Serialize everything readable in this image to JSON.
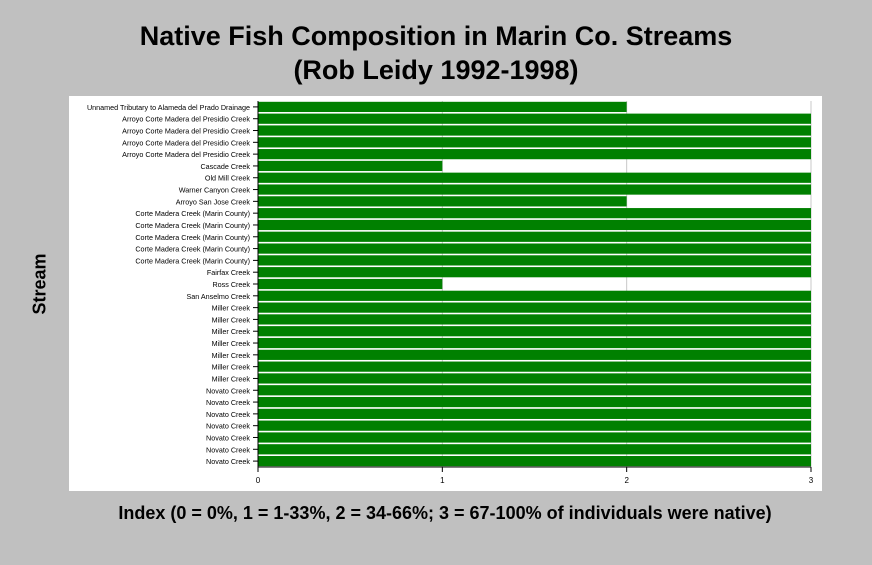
{
  "chart_data": {
    "type": "bar",
    "orientation": "horizontal",
    "title": "Native Fish Composition in Marin Co. Streams",
    "subtitle": "(Rob Leidy 1992-1998)",
    "ylabel": "Stream",
    "xlabel": "Index (0 = 0%, 1 = 1-33%, 2 = 34-66%; 3 = 67-100% of individuals were native)",
    "xlim": [
      0,
      3
    ],
    "xticks": [
      0,
      1,
      2,
      3
    ],
    "grid": true,
    "bar_color": "#008000",
    "categories": [
      "Unnamed Tributary to Alameda del Prado Drainage",
      "Arroyo Corte Madera del Presidio Creek",
      "Arroyo Corte Madera del Presidio Creek",
      "Arroyo Corte Madera del Presidio Creek",
      "Arroyo Corte Madera del Presidio Creek",
      "Cascade Creek",
      "Old Mill Creek",
      "Warner Canyon Creek",
      "Arroyo San Jose Creek",
      "Corte Madera Creek (Marin County)",
      "Corte Madera Creek (Marin County)",
      "Corte Madera Creek (Marin County)",
      "Corte Madera Creek (Marin County)",
      "Corte Madera Creek (Marin County)",
      "Fairfax Creek",
      "Ross Creek",
      "San Anselmo Creek",
      "Miller Creek",
      "Miller Creek",
      "Miller Creek",
      "Miller Creek",
      "Miller Creek",
      "Miller Creek",
      "Miller Creek",
      "Novato Creek",
      "Novato Creek",
      "Novato Creek",
      "Novato Creek",
      "Novato Creek",
      "Novato Creek",
      "Novato Creek"
    ],
    "values": [
      2,
      3,
      3,
      3,
      3,
      1,
      3,
      3,
      2,
      3,
      3,
      3,
      3,
      3,
      3,
      1,
      3,
      3,
      3,
      3,
      3,
      3,
      3,
      3,
      3,
      3,
      3,
      3,
      3,
      3,
      3
    ]
  }
}
